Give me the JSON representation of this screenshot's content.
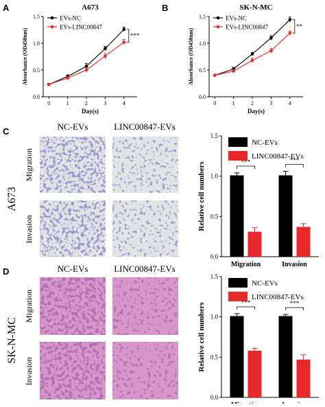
{
  "panels": {
    "a": "A",
    "b": "B",
    "c": "C",
    "d": "D"
  },
  "chart_data": [
    {
      "id": "A",
      "type": "line",
      "title": "A673",
      "xlabel": "Day(s)",
      "ylabel": "Absorbance (OD450nm)",
      "x": [
        0,
        1,
        2,
        3,
        4
      ],
      "xlim": [
        -0.3,
        4.7
      ],
      "ylim": [
        0,
        1.5
      ],
      "yticks": [
        "0.0",
        "0.5",
        "1.0",
        "1.5"
      ],
      "series": [
        {
          "name": "EVs-NC",
          "color": "#000000",
          "values": [
            0.23,
            0.38,
            0.57,
            0.9,
            1.26
          ],
          "err": [
            0.02,
            0.03,
            0.05,
            0.04,
            0.04
          ]
        },
        {
          "name": "EVs-LINC00847",
          "color": "#e8292a",
          "values": [
            0.23,
            0.35,
            0.5,
            0.76,
            1.02
          ],
          "err": [
            0.02,
            0.03,
            0.04,
            0.05,
            0.05
          ]
        }
      ],
      "significance": "***",
      "legend": "top-left"
    },
    {
      "id": "B",
      "type": "line",
      "title": "SK-N-MC",
      "xlabel": "Day(s)",
      "ylabel": "Absorbance (OD450nm)",
      "x": [
        0,
        1,
        2,
        3,
        4
      ],
      "xlim": [
        -0.3,
        4.7
      ],
      "ylim": [
        0,
        1.5
      ],
      "yticks": [
        "0.0",
        "0.5",
        "1.0",
        "1.5"
      ],
      "series": [
        {
          "name": "EVs-NC",
          "color": "#000000",
          "values": [
            0.4,
            0.52,
            0.8,
            1.1,
            1.44
          ],
          "err": [
            0.02,
            0.03,
            0.03,
            0.04,
            0.05
          ]
        },
        {
          "name": "EVs-LINC00847",
          "color": "#e8292a",
          "values": [
            0.4,
            0.48,
            0.68,
            0.86,
            1.19
          ],
          "err": [
            0.02,
            0.03,
            0.04,
            0.04,
            0.04
          ]
        }
      ],
      "significance": "**",
      "legend": "top-left"
    },
    {
      "id": "C",
      "type": "bar",
      "ylabel": "Relative cell numbers",
      "categories": [
        "Migration",
        "Invasion"
      ],
      "ylim": [
        0,
        1.5
      ],
      "yticks": [
        "0.0",
        "0.5",
        "1.0",
        "1.5"
      ],
      "series": [
        {
          "name": "NC-EVs",
          "color": "#000000",
          "values": [
            1.01,
            1.01
          ],
          "err": [
            0.03,
            0.05
          ]
        },
        {
          "name": "LINC00847-EVs",
          "color": "#e8292a",
          "values": [
            0.31,
            0.37
          ],
          "err": [
            0.05,
            0.04
          ]
        }
      ],
      "significance": [
        "***",
        "***"
      ],
      "legend": "top-right"
    },
    {
      "id": "D",
      "type": "bar",
      "ylabel": "Relative cell numbers",
      "categories": [
        "Migration",
        "Invasion"
      ],
      "ylim": [
        0,
        1.5
      ],
      "yticks": [
        "0.0",
        "0.5",
        "1.0",
        "1.5"
      ],
      "series": [
        {
          "name": "NC-EVs",
          "color": "#000000",
          "values": [
            1.01,
            1.01
          ],
          "err": [
            0.03,
            0.02
          ]
        },
        {
          "name": "LINC00847-EVs",
          "color": "#e8292a",
          "values": [
            0.58,
            0.47
          ],
          "err": [
            0.03,
            0.06
          ]
        }
      ],
      "significance": [
        "***",
        "***"
      ],
      "legend": "top-right"
    }
  ],
  "micrographs": {
    "c": {
      "col_labels": [
        "NC-EVs",
        "LINC00847-EVs"
      ],
      "row_labels": [
        "Migration",
        "Invasion"
      ],
      "cell_line": "A673",
      "stain_color": "#5b4fa0",
      "background_color": "#dfe5e5"
    },
    "d": {
      "col_labels": [
        "NC-EVs",
        "LINC00847-EVs"
      ],
      "row_labels": [
        "Migration",
        "Invasion"
      ],
      "cell_line": "SK-N-MC",
      "stain_color": "#7a2e82",
      "background_color": "#d897c8"
    }
  }
}
